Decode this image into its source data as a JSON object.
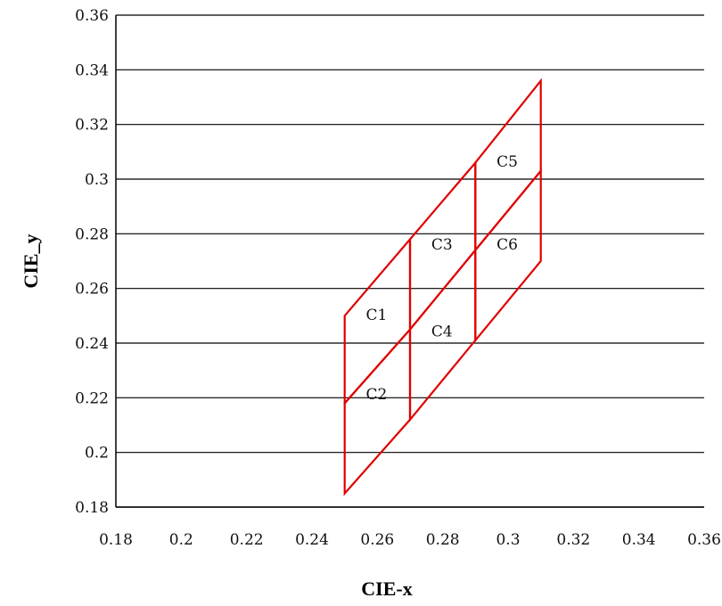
{
  "chart_data": {
    "type": "line",
    "xlabel": "CIE-x",
    "ylabel": "CIE_y",
    "xlim": [
      0.18,
      0.36
    ],
    "ylim": [
      0.18,
      0.36
    ],
    "x_ticks": [
      "0.18",
      "0.2",
      "0.22",
      "0.24",
      "0.26",
      "0.28",
      "0.3",
      "0.32",
      "0.34",
      "0.36"
    ],
    "y_ticks": [
      "0.18",
      "0.2",
      "0.22",
      "0.24",
      "0.26",
      "0.28",
      "0.3",
      "0.32",
      "0.34",
      "0.36"
    ],
    "grid": "horizontal",
    "line_color": "#e00000",
    "regions": [
      {
        "name": "C1",
        "points": [
          [
            0.25,
            0.25
          ],
          [
            0.27,
            0.278
          ],
          [
            0.27,
            0.245
          ],
          [
            0.25,
            0.218
          ]
        ],
        "label_pos": [
          0.2565,
          0.2485
        ]
      },
      {
        "name": "C2",
        "points": [
          [
            0.25,
            0.218
          ],
          [
            0.27,
            0.245
          ],
          [
            0.27,
            0.212
          ],
          [
            0.25,
            0.185
          ]
        ],
        "label_pos": [
          0.2565,
          0.2195
        ]
      },
      {
        "name": "C3",
        "points": [
          [
            0.27,
            0.278
          ],
          [
            0.29,
            0.306
          ],
          [
            0.29,
            0.274
          ],
          [
            0.27,
            0.245
          ]
        ],
        "label_pos": [
          0.2765,
          0.2743
        ]
      },
      {
        "name": "C4",
        "points": [
          [
            0.27,
            0.245
          ],
          [
            0.29,
            0.274
          ],
          [
            0.29,
            0.241
          ],
          [
            0.27,
            0.212
          ]
        ],
        "label_pos": [
          0.2765,
          0.2425
        ]
      },
      {
        "name": "C5",
        "points": [
          [
            0.29,
            0.306
          ],
          [
            0.31,
            0.336
          ],
          [
            0.31,
            0.303
          ],
          [
            0.29,
            0.274
          ]
        ],
        "label_pos": [
          0.2965,
          0.3045
        ]
      },
      {
        "name": "C6",
        "points": [
          [
            0.29,
            0.274
          ],
          [
            0.31,
            0.303
          ],
          [
            0.31,
            0.27
          ],
          [
            0.29,
            0.241
          ]
        ],
        "label_pos": [
          0.2965,
          0.2743
        ]
      }
    ]
  }
}
